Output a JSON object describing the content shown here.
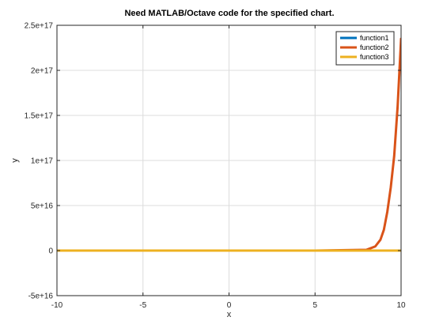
{
  "chart_data": {
    "type": "line",
    "title": "Need MATLAB/Octave code for the specified chart.",
    "xlabel": "x",
    "ylabel": "y",
    "xlim": [
      -10,
      10
    ],
    "ylim": [
      -5e+16,
      2.5e+17
    ],
    "grid": true,
    "legend_position": "top-right",
    "x_ticks": [
      -10,
      -5,
      0,
      5,
      10
    ],
    "x_tick_labels": [
      "-10",
      "-5",
      "0",
      "5",
      "10"
    ],
    "y_ticks": [
      -5e+16,
      0,
      5e+16,
      1e+17,
      1.5e+17,
      2e+17,
      2.5e+17
    ],
    "y_tick_labels": [
      "-5e+16",
      "0",
      "5e+16",
      "1e+17",
      "1.5e+17",
      "2e+17",
      "2.5e+17"
    ],
    "series": [
      {
        "name": "function1",
        "color": "#0072bd",
        "x": [
          -10,
          -5,
          0,
          5,
          8,
          9,
          10
        ],
        "y": [
          0,
          0,
          0,
          0,
          0,
          0,
          0
        ]
      },
      {
        "name": "function2",
        "color": "#d95319",
        "x": [
          -10,
          0,
          5,
          8.0,
          8.5,
          8.8,
          9.0,
          9.2,
          9.4,
          9.6,
          9.8,
          10.0
        ],
        "y": [
          0,
          0,
          0,
          920000000000000.0,
          4600000000000000.0,
          1.2e+16,
          2.3e+16,
          4.3e+16,
          7e+16,
          1.05e+17,
          1.6e+17,
          2.35e+17
        ]
      },
      {
        "name": "function3",
        "color": "#edb120",
        "x": [
          -10,
          -5,
          0,
          5,
          8,
          9,
          10
        ],
        "y": [
          0,
          0,
          0,
          0,
          0,
          0,
          0
        ]
      }
    ]
  }
}
